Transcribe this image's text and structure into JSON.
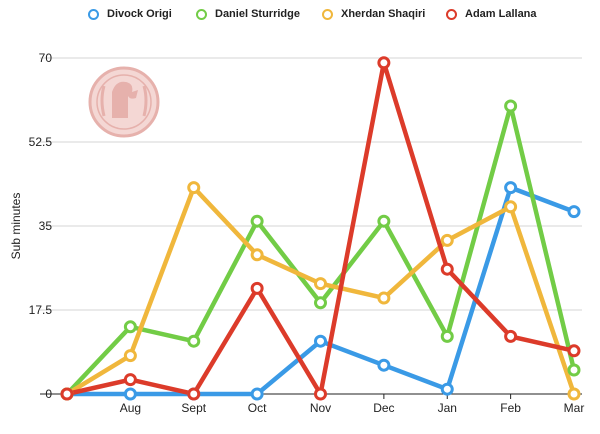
{
  "chart_data": {
    "type": "line",
    "title": "",
    "xlabel": "",
    "ylabel": "Sub minutes",
    "categories": [
      "",
      "Aug",
      "Sept",
      "Oct",
      "Nov",
      "Dec",
      "Jan",
      "Feb",
      "Mar"
    ],
    "ylim": [
      0,
      70
    ],
    "yticks": [
      "0",
      "17.5",
      "35",
      "52.5",
      "70"
    ],
    "ytick_values": [
      0,
      17.5,
      35,
      52.5,
      70
    ],
    "grid": true,
    "legend_position": "top",
    "series": [
      {
        "name": "Divock Origi",
        "color": "#3a9ae6",
        "values": [
          0,
          0,
          0,
          0,
          11,
          6,
          1,
          43,
          38
        ]
      },
      {
        "name": "Daniel Sturridge",
        "color": "#72cc46",
        "values": [
          0,
          14,
          11,
          36,
          19,
          36,
          12,
          60,
          5
        ]
      },
      {
        "name": "Xherdan Shaqiri",
        "color": "#f0b73c",
        "values": [
          0,
          8,
          43,
          29,
          23,
          20,
          32,
          39,
          0
        ]
      },
      {
        "name": "Adam Lallana",
        "color": "#dc3b2a",
        "values": [
          0,
          3,
          0,
          22,
          0,
          69,
          26,
          12,
          9
        ]
      }
    ]
  },
  "legend": {
    "items": [
      {
        "label": "Divock Origi",
        "color": "#3a9ae6"
      },
      {
        "label": "Daniel Sturridge",
        "color": "#72cc46"
      },
      {
        "label": "Xherdan Shaqiri",
        "color": "#f0b73c"
      },
      {
        "label": "Adam Lallana",
        "color": "#dc3b2a"
      }
    ]
  },
  "watermark": {
    "text": "LIVERPOOL FOOTBALL CLUB",
    "color": "#e4a9a4"
  }
}
